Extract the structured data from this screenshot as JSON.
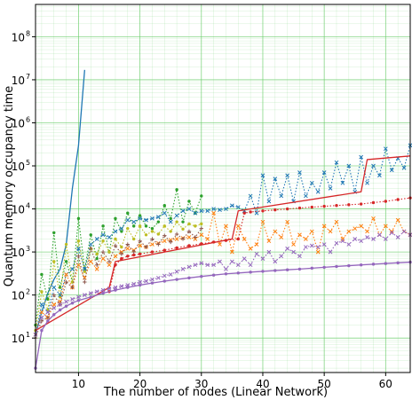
{
  "chart_data": {
    "type": "line",
    "title": "",
    "xlabel": "The number of nodes (Linear Network)",
    "ylabel": "Quantum memory occupancy time",
    "xlim": [
      3,
      64
    ],
    "ylim_log10": [
      0.2,
      8.75
    ],
    "yscale": "log",
    "grid": "major and minor, green",
    "x_ticks": [
      10,
      20,
      30,
      40,
      50,
      60
    ],
    "y_ticks": [
      {
        "exp": 1,
        "label": "10"
      },
      {
        "exp": 2,
        "label": "10"
      },
      {
        "exp": 3,
        "label": "10"
      },
      {
        "exp": 4,
        "label": "10"
      },
      {
        "exp": 5,
        "label": "10"
      },
      {
        "exp": 6,
        "label": "10"
      },
      {
        "exp": 7,
        "label": "10"
      },
      {
        "exp": 8,
        "label": "10"
      }
    ],
    "colors": {
      "blue": "#1f77b4",
      "orange": "#ff7f0e",
      "green": "#2ca02c",
      "red": "#d62728",
      "purple": "#9467bd",
      "brown": "#8c564b",
      "olive": "#bcbd22",
      "grid": "#66cc66"
    },
    "series": [
      {
        "color": "blue",
        "style": "solid",
        "marker": "none",
        "x": [
          3,
          4,
          5,
          6,
          7,
          8,
          9,
          10,
          11
        ],
        "y": [
          12,
          40,
          110,
          230,
          400,
          1500,
          30000,
          300000,
          17000000
        ]
      },
      {
        "color": "green",
        "style": "dotted",
        "marker": "o",
        "x": [
          3,
          4,
          5,
          6,
          7,
          8,
          9,
          10,
          11,
          12,
          13,
          14,
          15,
          16,
          17,
          18,
          19,
          20,
          21,
          22,
          23,
          24,
          25,
          26,
          27,
          28,
          29,
          30
        ],
        "y": [
          20,
          300,
          80,
          2800,
          150,
          600,
          200,
          6000,
          400,
          2500,
          700,
          4000,
          1000,
          6000,
          3000,
          8000,
          4000,
          7000,
          4000,
          3500,
          5000,
          12000,
          6000,
          28000,
          5000,
          15000,
          8000,
          20000
        ]
      },
      {
        "color": "olive",
        "style": "dotted",
        "marker": "o",
        "x": [
          3,
          4,
          5,
          6,
          7,
          8,
          9,
          10,
          11,
          12,
          13,
          14,
          15,
          16,
          17,
          18,
          19,
          20,
          21,
          22,
          23,
          24,
          25,
          26,
          27,
          28,
          29,
          30
        ],
        "y": [
          15,
          120,
          45,
          600,
          90,
          1500,
          200,
          1800,
          350,
          1200,
          900,
          1800,
          1000,
          2000,
          1300,
          3500,
          2000,
          4000,
          2500,
          3000,
          2600,
          4000,
          3000,
          5000,
          3400,
          4500,
          4000,
          4500
        ]
      },
      {
        "color": "blue",
        "style": "dotted",
        "marker": "x",
        "x": [
          3,
          4,
          5,
          6,
          7,
          8,
          9,
          10,
          11,
          12,
          13,
          14,
          15,
          16,
          17,
          18,
          19,
          20,
          21,
          22,
          23,
          24,
          25,
          26,
          27,
          28,
          29,
          30,
          31,
          32,
          33,
          34,
          35,
          36,
          37,
          38,
          39,
          40,
          41,
          42,
          43,
          44,
          45,
          46,
          47,
          48,
          49,
          50,
          51,
          52,
          53,
          54,
          55,
          56,
          57,
          58,
          59,
          60,
          61,
          62,
          63,
          64
        ],
        "y": [
          12,
          60,
          40,
          150,
          100,
          300,
          400,
          1200,
          400,
          1500,
          2000,
          2500,
          2200,
          3000,
          3500,
          5500,
          5000,
          6000,
          5500,
          6000,
          6500,
          8000,
          5000,
          7000,
          9000,
          10000,
          8000,
          9000,
          9000,
          10000,
          9500,
          10000,
          12000,
          11000,
          9000,
          20000,
          8000,
          60000,
          15000,
          50000,
          20000,
          60000,
          15000,
          70000,
          20000,
          40000,
          25000,
          70000,
          30000,
          120000,
          40000,
          100000,
          25000,
          160000,
          40000,
          100000,
          60000,
          250000,
          80000,
          150000,
          90000,
          300000
        ]
      },
      {
        "color": "orange",
        "style": "dotted",
        "marker": "x",
        "x": [
          3,
          4,
          5,
          6,
          7,
          8,
          9,
          10,
          11,
          12,
          13,
          14,
          15,
          16,
          17,
          18,
          19,
          20,
          21,
          22,
          23,
          24,
          25,
          26,
          27,
          28,
          29,
          30,
          31,
          32,
          33,
          34,
          35,
          36,
          37,
          38,
          39,
          40,
          41,
          42,
          43,
          44,
          45,
          46,
          47,
          48,
          49,
          50,
          51,
          52,
          53,
          54,
          55,
          56,
          57,
          58,
          59,
          60,
          61,
          62,
          63,
          64
        ],
        "y": [
          12,
          40,
          30,
          60,
          70,
          300,
          150,
          500,
          250,
          600,
          400,
          700,
          500,
          800,
          1000,
          1200,
          1100,
          1400,
          1300,
          1500,
          1600,
          1800,
          1900,
          2000,
          2100,
          2200,
          2000,
          2500,
          2000,
          8000,
          1500,
          4000,
          1000,
          4000,
          2000,
          1200,
          1500,
          5000,
          1800,
          3000,
          2200,
          5000,
          1500,
          2500,
          2000,
          3000,
          1000,
          4000,
          3000,
          5000,
          2000,
          3000,
          3500,
          4000,
          3000,
          6000,
          2500,
          4000,
          3000,
          5500,
          3000,
          2500
        ]
      },
      {
        "color": "brown",
        "style": "dotted",
        "marker": "+",
        "x": [
          3,
          4,
          5,
          6,
          7,
          8,
          9,
          10,
          11,
          12,
          13,
          14,
          15,
          16,
          17,
          18,
          19,
          20,
          21,
          22,
          23,
          24,
          25,
          26,
          27,
          28,
          29,
          30
        ],
        "y": [
          10,
          25,
          30,
          100,
          60,
          200,
          150,
          800,
          200,
          1200,
          500,
          1000,
          600,
          1400,
          900,
          1500,
          1000,
          1800,
          1300,
          2000,
          1500,
          2400,
          1700,
          2600,
          2000,
          3000,
          2200,
          3500
        ]
      },
      {
        "color": "red",
        "style": "solid",
        "marker": "none",
        "x": [
          3,
          15,
          16,
          35,
          36,
          56,
          57,
          64
        ],
        "y": [
          15,
          150,
          600,
          2000,
          9000,
          25000,
          140000,
          170000
        ]
      },
      {
        "color": "red",
        "style": "dotted",
        "marker": "o",
        "x": [
          15,
          16,
          17,
          18,
          19,
          20,
          22,
          24,
          26,
          28,
          30,
          32,
          34,
          36,
          37,
          38,
          40,
          42,
          44,
          46,
          48,
          50,
          52,
          54,
          56,
          58,
          60,
          62,
          64
        ],
        "y": [
          120,
          500,
          700,
          800,
          850,
          900,
          1000,
          1100,
          1250,
          1400,
          1550,
          1700,
          1850,
          2000,
          8000,
          8500,
          9000,
          9500,
          10000,
          10500,
          11000,
          11500,
          12000,
          12500,
          13000,
          14000,
          15000,
          16500,
          18000
        ]
      },
      {
        "color": "purple",
        "style": "dotted",
        "marker": "x",
        "x": [
          3,
          4,
          5,
          6,
          7,
          8,
          9,
          10,
          11,
          12,
          13,
          14,
          15,
          16,
          17,
          18,
          19,
          20,
          21,
          22,
          23,
          24,
          25,
          26,
          27,
          28,
          29,
          30,
          31,
          32,
          33,
          34,
          35,
          36,
          37,
          38,
          39,
          40,
          41,
          42,
          43,
          44,
          45,
          46,
          47,
          48,
          49,
          50,
          51,
          52,
          53,
          54,
          55,
          56,
          57,
          58,
          59,
          60,
          61,
          62,
          63,
          64
        ],
        "y": [
          12,
          30,
          40,
          50,
          60,
          70,
          80,
          90,
          100,
          110,
          120,
          130,
          140,
          150,
          160,
          170,
          180,
          200,
          210,
          230,
          250,
          280,
          300,
          350,
          400,
          450,
          500,
          550,
          500,
          500,
          600,
          400,
          600,
          500,
          700,
          500,
          900,
          700,
          1000,
          600,
          800,
          1200,
          1000,
          800,
          1300,
          1400,
          1300,
          1500,
          1000,
          1600,
          1800,
          1500,
          2000,
          1800,
          2200,
          2000,
          2500,
          2000,
          2800,
          2200,
          3000,
          2500
        ]
      },
      {
        "color": "purple",
        "style": "solid",
        "marker": "o",
        "x": [
          3,
          4,
          5,
          6,
          7,
          8,
          9,
          10,
          12,
          14,
          16,
          18,
          20,
          22,
          24,
          26,
          28,
          30,
          32,
          34,
          36,
          38,
          40,
          42,
          44,
          46,
          48,
          50,
          52,
          54,
          56,
          58,
          60,
          62,
          64
        ],
        "y": [
          2,
          15,
          25,
          35,
          45,
          55,
          65,
          75,
          90,
          110,
          130,
          150,
          170,
          190,
          210,
          230,
          250,
          270,
          290,
          310,
          325,
          340,
          355,
          370,
          385,
          400,
          420,
          440,
          460,
          480,
          500,
          520,
          540,
          560,
          580
        ]
      }
    ]
  }
}
